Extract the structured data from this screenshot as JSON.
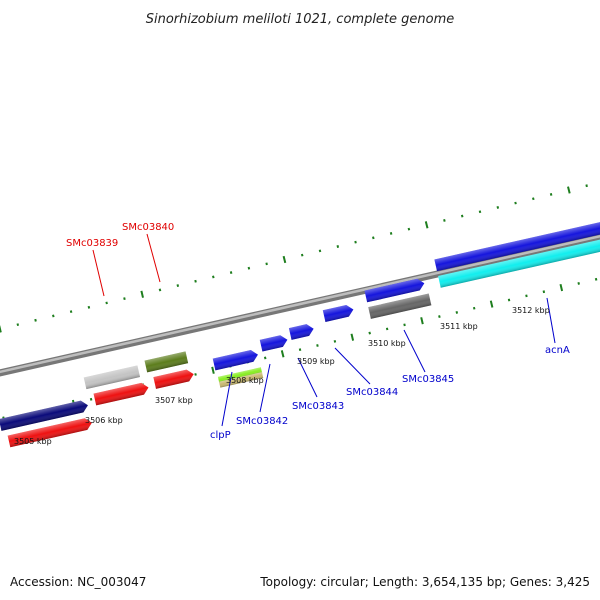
{
  "title": "Sinorhizobium meliloti 1021, complete genome",
  "accession": "Accession: NC_003047",
  "summary": "Topology: circular; Length: 3,654,135 bp; Genes: 3,425",
  "colors": {
    "tick": "#1e7e1e",
    "backbone": "#8a8a8a",
    "red_label": "#e00000",
    "blue_label": "#0000cc"
  },
  "scale_labels": [
    {
      "id": "kbp-3505",
      "text": "3505 kbp"
    },
    {
      "id": "kbp-3506",
      "text": "3506 kbp"
    },
    {
      "id": "kbp-3507",
      "text": "3507 kbp"
    },
    {
      "id": "kbp-3508",
      "text": "3508 kbp"
    },
    {
      "id": "kbp-3509",
      "text": "3509 kbp"
    },
    {
      "id": "kbp-3510",
      "text": "3510 kbp"
    },
    {
      "id": "kbp-3511",
      "text": "3511 kbp"
    },
    {
      "id": "kbp-3512",
      "text": "3512 kbp"
    }
  ],
  "gene_labels": [
    {
      "id": "smc03839",
      "text": "SMc03839",
      "color": "#e00000"
    },
    {
      "id": "smc03840",
      "text": "SMc03840",
      "color": "#e00000"
    },
    {
      "id": "clpp",
      "text": "clpP",
      "color": "#0000cc"
    },
    {
      "id": "smc03842",
      "text": "SMc03842",
      "color": "#0000cc"
    },
    {
      "id": "smc03843",
      "text": "SMc03843",
      "color": "#0000cc"
    },
    {
      "id": "smc03844",
      "text": "SMc03844",
      "color": "#0000cc"
    },
    {
      "id": "smc03845",
      "text": "SMc03845",
      "color": "#0000cc"
    },
    {
      "id": "acna",
      "text": "acnA",
      "color": "#0000cc"
    }
  ],
  "features": [
    {
      "id": "f1",
      "color": "#0a0a7a"
    },
    {
      "id": "f2",
      "color": "#ee1111"
    },
    {
      "id": "f3",
      "color": "#c4c4c4"
    },
    {
      "id": "f4",
      "color": "#ee1111"
    },
    {
      "id": "f5",
      "color": "#5c7d1c"
    },
    {
      "id": "f6",
      "color": "#ee1111"
    },
    {
      "id": "f7",
      "color": "#1515dd"
    },
    {
      "id": "f8",
      "color": "#88ee22"
    },
    {
      "id": "f9",
      "color": "#c8b870"
    },
    {
      "id": "f10",
      "color": "#1515dd"
    },
    {
      "id": "f11",
      "color": "#1515dd"
    },
    {
      "id": "f12",
      "color": "#1515dd"
    },
    {
      "id": "f13",
      "color": "#1515dd"
    },
    {
      "id": "f14",
      "color": "#666666"
    },
    {
      "id": "f15",
      "color": "#1515dd"
    },
    {
      "id": "f16",
      "color": "#11eeee"
    }
  ]
}
